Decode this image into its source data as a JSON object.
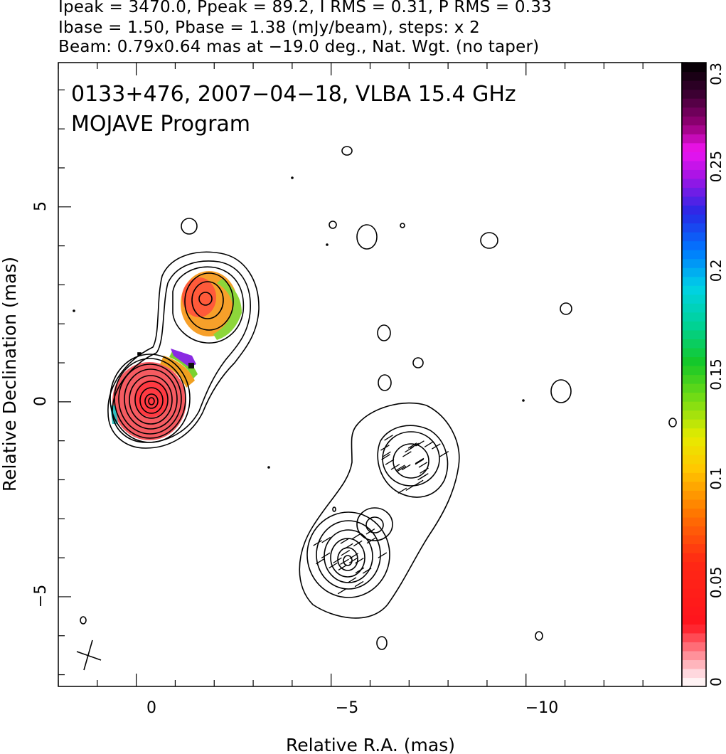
{
  "header": {
    "line1": "Ipeak = 3470.0, Ppeak = 89.2, I RMS = 0.31, P RMS = 0.33",
    "line2": "Ibase = 1.50, Pbase = 1.38 (mJy/beam), steps: x 2",
    "line3": "Beam: 0.79x0.64 mas at −19.0 deg., Nat. Wgt. (no taper)"
  },
  "chart_data": {
    "type": "heatmap",
    "title_line1": "0133+476, 2007−04−18, VLBA 15.4 GHz",
    "title_line2": "MOJAVE Program",
    "xlabel": "Relative R.A. (mas)",
    "ylabel": "Relative Declination (mas)",
    "xlim": [
      2,
      -14
    ],
    "ylim": [
      -7.3,
      8.7
    ],
    "x_ticks": [
      "0",
      "−5",
      "−10"
    ],
    "y_ticks": [
      "−5",
      "0",
      "5"
    ],
    "colorbar": {
      "range": [
        0,
        0.3
      ],
      "ticks": [
        "0",
        "0.05",
        "0.1",
        "0.15",
        "0.2",
        "0.25",
        "0.3"
      ]
    },
    "beam": {
      "major_mas": 0.79,
      "minor_mas": 0.64,
      "pa_deg": -19.0
    },
    "polarization_patches": [
      {
        "name": "core",
        "x": 0.05,
        "y": 0.0,
        "rx": 0.95,
        "ry": 0.97,
        "frac": 0.03
      },
      {
        "name": "jet-knot",
        "x": -1.4,
        "y": 2.6,
        "rx": 0.62,
        "ry": 0.6,
        "frac": 0.07
      }
    ],
    "contour_groups": [
      {
        "name": "core",
        "x": 0.1,
        "y": 0.15,
        "levels": 12
      },
      {
        "name": "jet-knot",
        "x": -1.4,
        "y": 2.6,
        "levels": 4
      },
      {
        "name": "outer-lobe",
        "x": -6.6,
        "y": -1.6,
        "levels": 4
      },
      {
        "name": "lower-lobe",
        "x": -5.0,
        "y": -4.1,
        "levels": 7
      }
    ]
  }
}
